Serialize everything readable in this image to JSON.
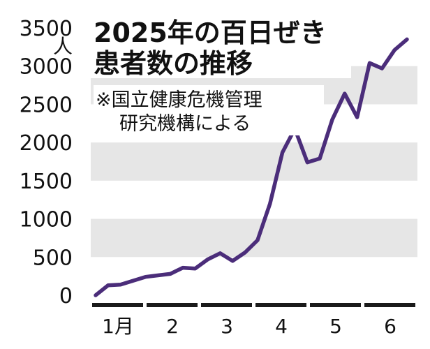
{
  "chart_data": {
    "type": "line",
    "title_lines": [
      "2025年の百日ぜき",
      "患者数の推移"
    ],
    "source_lines": [
      "※国立健康危機管理",
      "研究機構による"
    ],
    "unit": "人",
    "y_ticks": [
      "3500",
      "3000",
      "2500",
      "2000",
      "1500",
      "1000",
      "500",
      "0"
    ],
    "ylim": [
      0,
      3500
    ],
    "months": [
      "1月",
      "2",
      "3",
      "4",
      "5",
      "6"
    ],
    "grid": "alternating horizontal bands",
    "line_color": "#4b2d7a",
    "series": [
      {
        "values": [
          0,
          130,
          140,
          190,
          240,
          260,
          280,
          360,
          350,
          470,
          550,
          450,
          560,
          720,
          1200,
          1870,
          2180,
          1740,
          1790,
          2300,
          2640,
          2330,
          3040,
          2970,
          3210,
          3350
        ]
      }
    ]
  }
}
